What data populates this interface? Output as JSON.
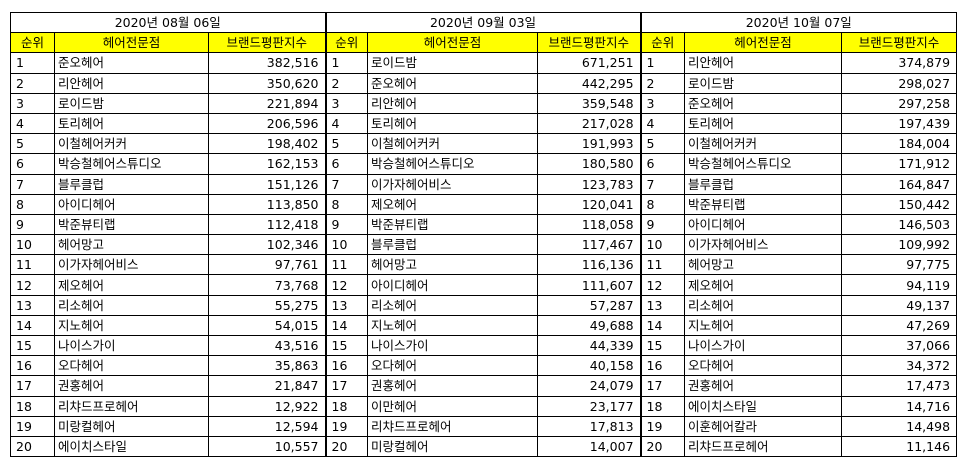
{
  "periods": [
    {
      "date": "2020년 08월 06일",
      "rows": [
        {
          "rank": "1",
          "name": "준오헤어",
          "value": "382,516"
        },
        {
          "rank": "2",
          "name": "리안헤어",
          "value": "350,620"
        },
        {
          "rank": "3",
          "name": "로이드밤",
          "value": "221,894"
        },
        {
          "rank": "4",
          "name": "토리헤어",
          "value": "206,596"
        },
        {
          "rank": "5",
          "name": "이철헤어커커",
          "value": "198,402"
        },
        {
          "rank": "6",
          "name": "박승철헤어스튜디오",
          "value": "162,153"
        },
        {
          "rank": "7",
          "name": "블루클럽",
          "value": "151,126"
        },
        {
          "rank": "8",
          "name": "아이디헤어",
          "value": "113,850"
        },
        {
          "rank": "9",
          "name": "박준뷰티랩",
          "value": "112,418"
        },
        {
          "rank": "10",
          "name": "헤어망고",
          "value": "102,346"
        },
        {
          "rank": "11",
          "name": "이가자헤어비스",
          "value": "97,761"
        },
        {
          "rank": "12",
          "name": "제오헤어",
          "value": "73,768"
        },
        {
          "rank": "13",
          "name": "리소헤어",
          "value": "55,275"
        },
        {
          "rank": "14",
          "name": "지노헤어",
          "value": "54,015"
        },
        {
          "rank": "15",
          "name": "나이스가이",
          "value": "43,516"
        },
        {
          "rank": "16",
          "name": "오다헤어",
          "value": "35,863"
        },
        {
          "rank": "17",
          "name": "권홍헤어",
          "value": "21,847"
        },
        {
          "rank": "18",
          "name": "리챠드프로헤어",
          "value": "12,922"
        },
        {
          "rank": "19",
          "name": "미랑컬헤어",
          "value": "12,594"
        },
        {
          "rank": "20",
          "name": "에이치스타일",
          "value": "10,557"
        }
      ]
    },
    {
      "date": "2020년 09월 03일",
      "rows": [
        {
          "rank": "1",
          "name": "로이드밤",
          "value": "671,251"
        },
        {
          "rank": "2",
          "name": "준오헤어",
          "value": "442,295"
        },
        {
          "rank": "3",
          "name": "리안헤어",
          "value": "359,548"
        },
        {
          "rank": "4",
          "name": "토리헤어",
          "value": "217,028"
        },
        {
          "rank": "5",
          "name": "이철헤어커커",
          "value": "191,993"
        },
        {
          "rank": "6",
          "name": "박승철헤어스튜디오",
          "value": "180,580"
        },
        {
          "rank": "7",
          "name": "이가자헤어비스",
          "value": "123,783"
        },
        {
          "rank": "8",
          "name": "제오헤어",
          "value": "120,041"
        },
        {
          "rank": "9",
          "name": "박준뷰티랩",
          "value": "118,058"
        },
        {
          "rank": "10",
          "name": "블루클럽",
          "value": "117,467"
        },
        {
          "rank": "11",
          "name": "헤어망고",
          "value": "116,136"
        },
        {
          "rank": "12",
          "name": "아이디헤어",
          "value": "111,607"
        },
        {
          "rank": "13",
          "name": "리소헤어",
          "value": "57,287"
        },
        {
          "rank": "14",
          "name": "지노헤어",
          "value": "49,688"
        },
        {
          "rank": "15",
          "name": "나이스가이",
          "value": "44,339"
        },
        {
          "rank": "16",
          "name": "오다헤어",
          "value": "40,158"
        },
        {
          "rank": "17",
          "name": "권홍헤어",
          "value": "24,079"
        },
        {
          "rank": "18",
          "name": "이만헤어",
          "value": "23,177"
        },
        {
          "rank": "19",
          "name": "리챠드프로헤어",
          "value": "17,813"
        },
        {
          "rank": "20",
          "name": "미랑컬헤어",
          "value": "14,007"
        }
      ]
    },
    {
      "date": "2020년 10월 07일",
      "rows": [
        {
          "rank": "1",
          "name": "리안헤어",
          "value": "374,879"
        },
        {
          "rank": "2",
          "name": "로이드밤",
          "value": "298,027"
        },
        {
          "rank": "3",
          "name": "준오헤어",
          "value": "297,258"
        },
        {
          "rank": "4",
          "name": "토리헤어",
          "value": "197,439"
        },
        {
          "rank": "5",
          "name": "이철헤어커커",
          "value": "184,004"
        },
        {
          "rank": "6",
          "name": "박승철헤어스튜디오",
          "value": "171,912"
        },
        {
          "rank": "7",
          "name": "블루클럽",
          "value": "164,847"
        },
        {
          "rank": "8",
          "name": "박준뷰티랩",
          "value": "150,442"
        },
        {
          "rank": "9",
          "name": "아이디헤어",
          "value": "146,503"
        },
        {
          "rank": "10",
          "name": "이가자헤어비스",
          "value": "109,992"
        },
        {
          "rank": "11",
          "name": "헤어망고",
          "value": "97,775"
        },
        {
          "rank": "12",
          "name": "제오헤어",
          "value": "94,119"
        },
        {
          "rank": "13",
          "name": "리소헤어",
          "value": "49,137"
        },
        {
          "rank": "14",
          "name": "지노헤어",
          "value": "47,269"
        },
        {
          "rank": "15",
          "name": "나이스가이",
          "value": "37,066"
        },
        {
          "rank": "16",
          "name": "오다헤어",
          "value": "34,372"
        },
        {
          "rank": "17",
          "name": "권홍헤어",
          "value": "17,473"
        },
        {
          "rank": "18",
          "name": "에이치스타일",
          "value": "14,716"
        },
        {
          "rank": "19",
          "name": "이훈헤어칼라",
          "value": "14,498"
        },
        {
          "rank": "20",
          "name": "리챠드프로헤어",
          "value": "11,146"
        }
      ]
    }
  ],
  "headers": {
    "rank": "순위",
    "name": "헤어전문점",
    "value": "브랜드평판지수"
  },
  "colors": {
    "header_bg": "#ffff00",
    "border": "#000000"
  }
}
